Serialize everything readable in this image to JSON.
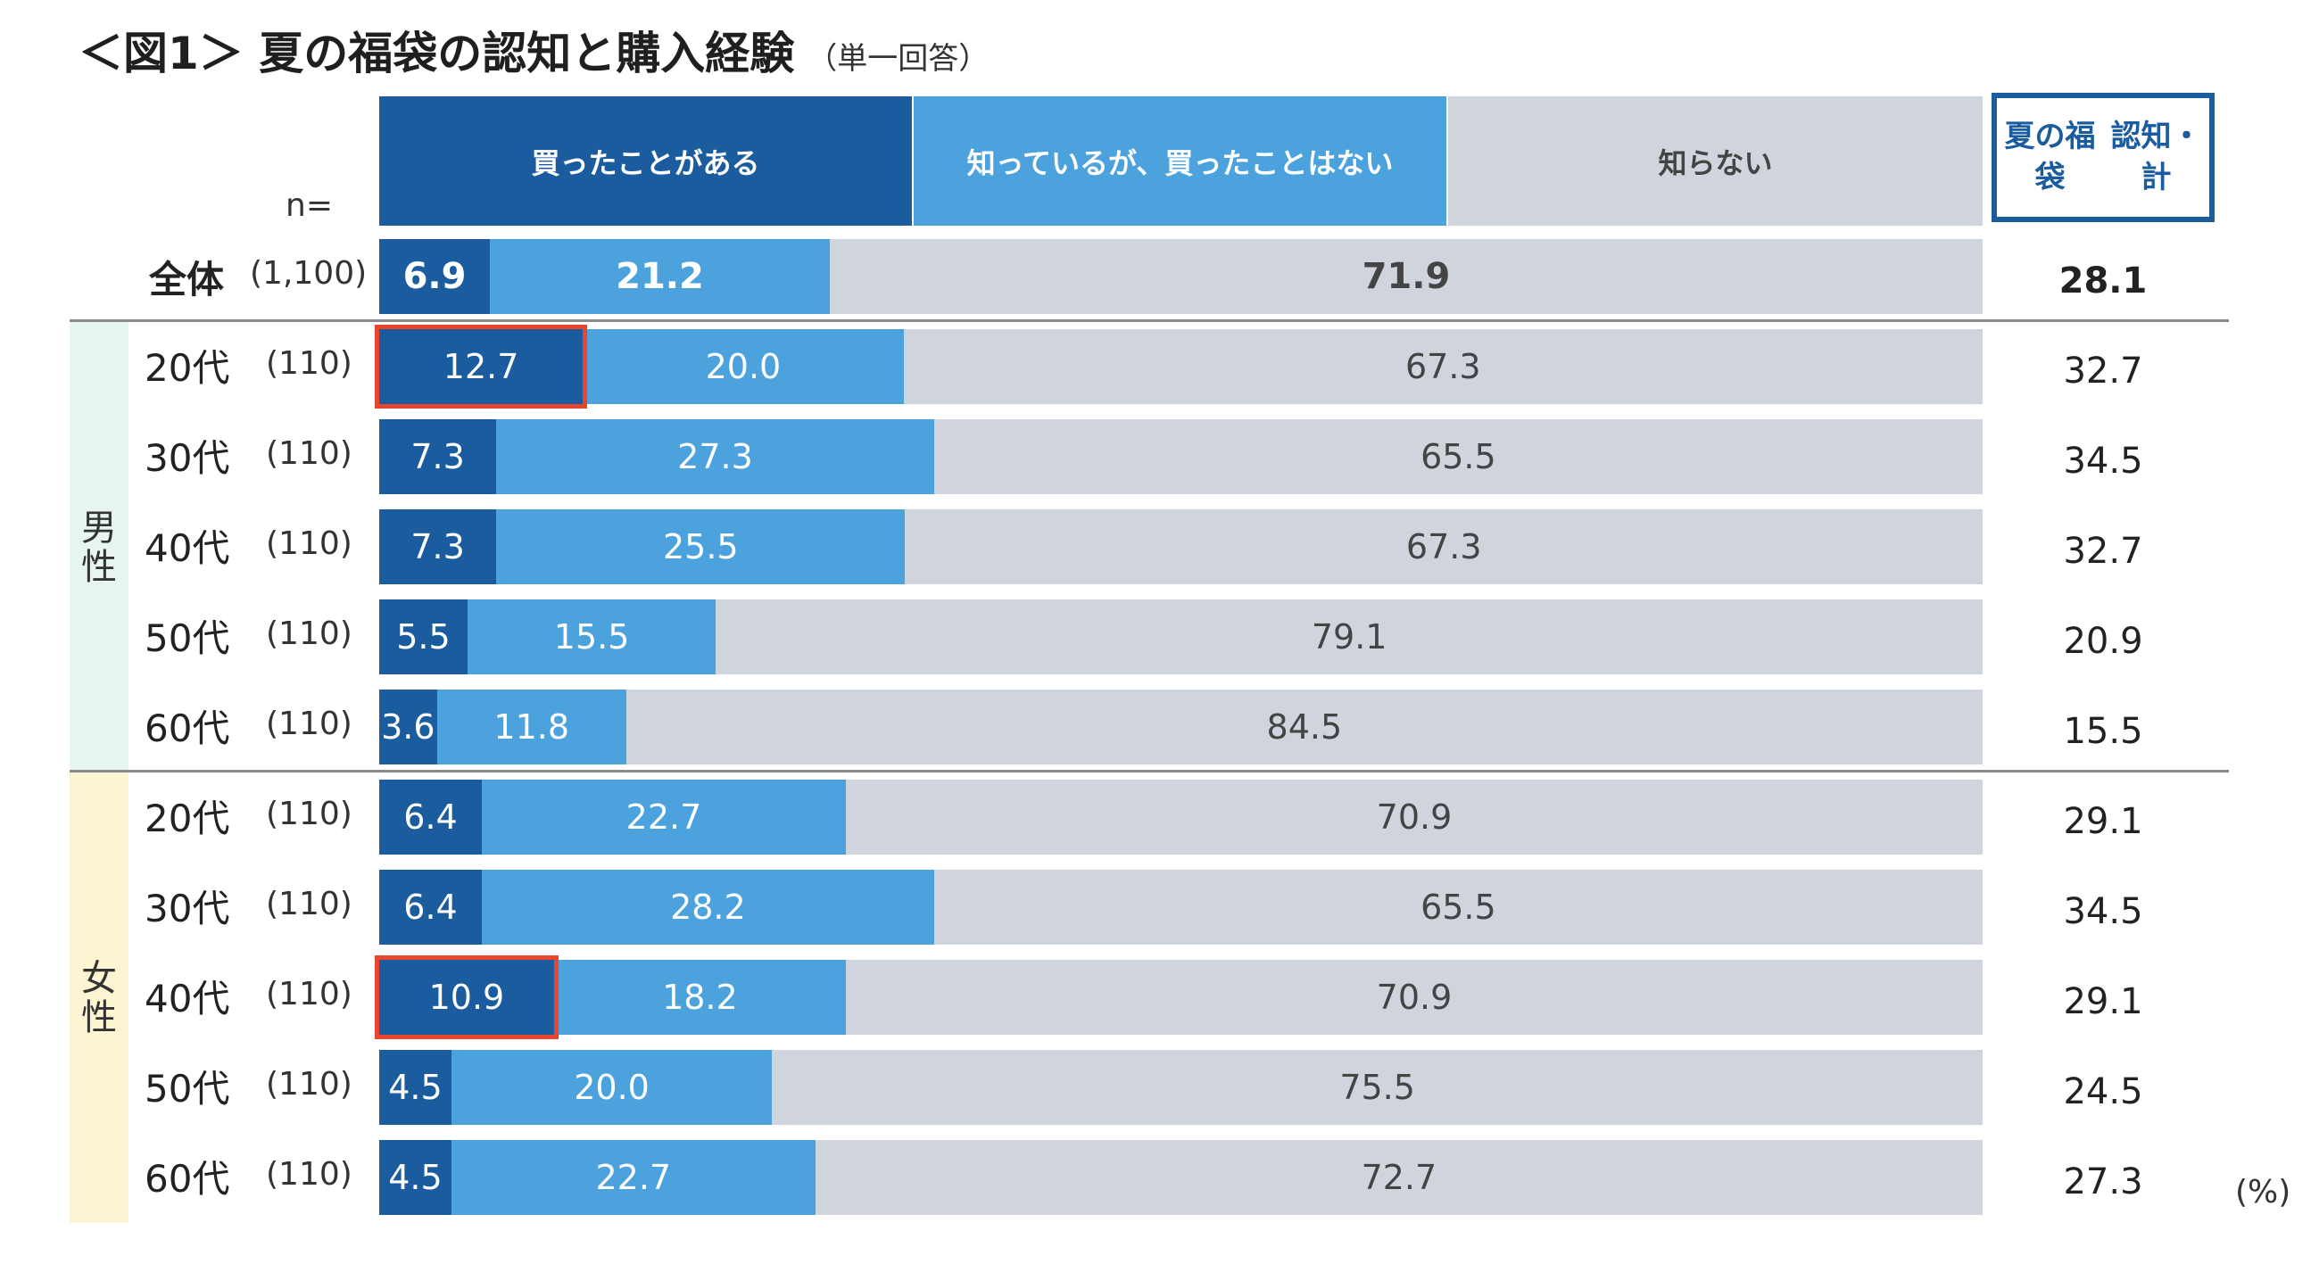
{
  "title": "＜図1＞ 夏の福袋の認知と購入経験",
  "subtitle": "（単一回答）",
  "n_label": "n=",
  "unit": "(%)",
  "total_header": "夏の福袋\n認知・計",
  "colors": {
    "bought": "#1a5c9e",
    "known": "#4ba2dd",
    "unknown": "#d0d5dd",
    "highlight": "#e8452c",
    "male_band": "#e6f5f1",
    "female_band": "#fdf4d2"
  },
  "chart_data": {
    "type": "bar",
    "orientation": "horizontal",
    "stacked": true,
    "percent_scale": [
      0,
      100
    ],
    "title": "夏の福袋の認知と購入経験",
    "series": [
      {
        "name": "買ったことがある"
      },
      {
        "name": "知っているが、買ったことはない"
      },
      {
        "name": "知らない"
      }
    ],
    "groups": [
      {
        "name": "",
        "rows": [
          {
            "label": "全体",
            "n": "(1,100)",
            "values": [
              6.9,
              21.2,
              71.9
            ],
            "total": "28.1",
            "bold": true
          }
        ]
      },
      {
        "name": "男性",
        "rows": [
          {
            "label": "20代",
            "n": "(110)",
            "values": [
              12.7,
              20.0,
              67.3
            ],
            "total": "32.7",
            "highlight": true
          },
          {
            "label": "30代",
            "n": "(110)",
            "values": [
              7.3,
              27.3,
              65.5
            ],
            "total": "34.5"
          },
          {
            "label": "40代",
            "n": "(110)",
            "values": [
              7.3,
              25.5,
              67.3
            ],
            "total": "32.7"
          },
          {
            "label": "50代",
            "n": "(110)",
            "values": [
              5.5,
              15.5,
              79.1
            ],
            "total": "20.9"
          },
          {
            "label": "60代",
            "n": "(110)",
            "values": [
              3.6,
              11.8,
              84.5
            ],
            "total": "15.5"
          }
        ]
      },
      {
        "name": "女性",
        "rows": [
          {
            "label": "20代",
            "n": "(110)",
            "values": [
              6.4,
              22.7,
              70.9
            ],
            "total": "29.1"
          },
          {
            "label": "30代",
            "n": "(110)",
            "values": [
              6.4,
              28.2,
              65.5
            ],
            "total": "34.5"
          },
          {
            "label": "40代",
            "n": "(110)",
            "values": [
              10.9,
              18.2,
              70.9
            ],
            "total": "29.1",
            "highlight": true
          },
          {
            "label": "50代",
            "n": "(110)",
            "values": [
              4.5,
              20.0,
              75.5
            ],
            "total": "24.5"
          },
          {
            "label": "60代",
            "n": "(110)",
            "values": [
              4.5,
              22.7,
              72.7
            ],
            "total": "27.3"
          }
        ]
      }
    ]
  }
}
